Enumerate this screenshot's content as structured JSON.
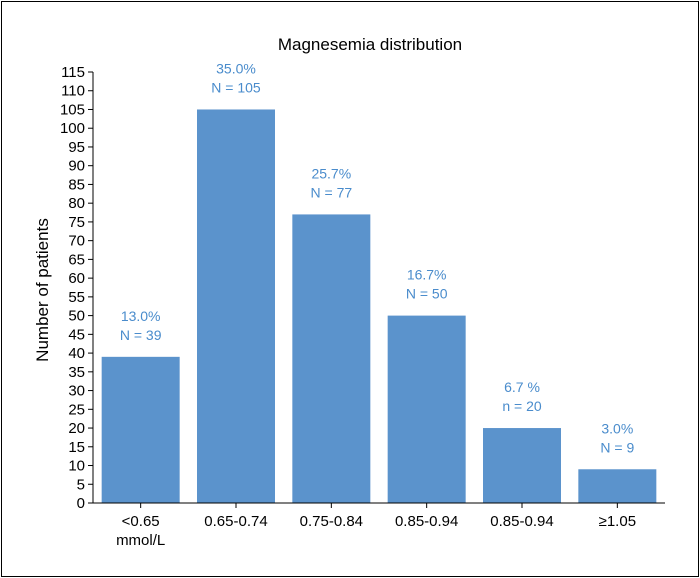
{
  "chart_data": {
    "type": "bar",
    "title": "Magnesemia distribution",
    "xlabel": "",
    "ylabel": "Number of patients",
    "ylim": [
      0,
      115
    ],
    "ytick_step": 5,
    "categories": [
      [
        "<0.65",
        "mmol/L"
      ],
      [
        "0.65-0.74"
      ],
      [
        "0.75-0.84"
      ],
      [
        "0.85-0.94"
      ],
      [
        "0.85-0.94"
      ],
      [
        "≥1.05"
      ]
    ],
    "values": [
      39,
      105,
      77,
      50,
      20,
      9
    ],
    "data_labels": [
      [
        "13.0%",
        "N = 39"
      ],
      [
        "35.0%",
        "N = 105"
      ],
      [
        "25.7%",
        "N = 77"
      ],
      [
        "16.7%",
        "N = 50"
      ],
      [
        "6.7 %",
        "n = 20"
      ],
      [
        "3.0%",
        "N = 9"
      ]
    ],
    "grid": false,
    "colors": {
      "bar": "#5b93cc",
      "label": "#4a8ccc",
      "axis": "#000000"
    }
  }
}
